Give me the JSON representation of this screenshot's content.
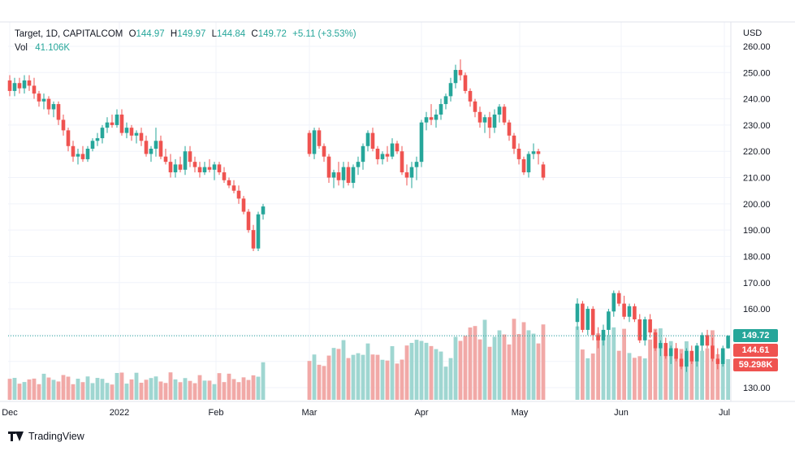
{
  "legend": {
    "symbol": "Target, 1D, CAPITALCOM",
    "o_label": "O",
    "o_value": "144.97",
    "h_label": "H",
    "h_value": "149.97",
    "l_label": "L",
    "l_value": "144.84",
    "c_label": "C",
    "c_value": "149.72",
    "change": "+5.11 (+3.53%)",
    "vol_label": "Vol",
    "vol_value": "41.106K"
  },
  "axis": {
    "currency": "USD",
    "price_ticks": [
      "260.00",
      "250.00",
      "240.00",
      "230.00",
      "220.00",
      "210.00",
      "200.00",
      "190.00",
      "180.00",
      "170.00",
      "160.00",
      "150.00",
      "140.00",
      "130.00"
    ],
    "time_ticks": [
      "Dec",
      "2022",
      "Feb",
      "Mar",
      "Apr",
      "May",
      "Jun",
      "Jul"
    ]
  },
  "price_tags": {
    "last": "149.72",
    "prev": "144.61",
    "volume": "59.298K"
  },
  "brand": {
    "name": "TradingView"
  },
  "colors": {
    "up": "#26a69a",
    "down": "#ef5350",
    "vol_up": "#9fd6d1",
    "vol_down": "#f1a9a7",
    "grid": "#f0f3fa"
  },
  "chart_data": {
    "type": "candlestick",
    "title": "Target, 1D, CAPITALCOM",
    "ylabel": "USD",
    "ylim": [
      126,
      262
    ],
    "x_labels": [
      "Dec",
      "2022",
      "Feb",
      "Mar",
      "Apr",
      "May",
      "Jun",
      "Jul"
    ],
    "segments": [
      {
        "kind": "down",
        "ohlc": [
          [
            247,
            249,
            241,
            243
          ],
          [
            243,
            248,
            241,
            246
          ],
          [
            246,
            248,
            242,
            244
          ],
          [
            244,
            249,
            242,
            247
          ],
          [
            247,
            249,
            243,
            245
          ],
          [
            245,
            248,
            240,
            242
          ],
          [
            242,
            243,
            237,
            239
          ],
          [
            239,
            242,
            236,
            240
          ],
          [
            240,
            241,
            234,
            236
          ],
          [
            236,
            239,
            233,
            238
          ],
          [
            238,
            239,
            230,
            232
          ],
          [
            232,
            234,
            226,
            228
          ],
          [
            228,
            229,
            220,
            222
          ],
          [
            222,
            224,
            216,
            218
          ],
          [
            218,
            221,
            215,
            219
          ],
          [
            219,
            222,
            216,
            217
          ],
          [
            217,
            222,
            216,
            221
          ],
          [
            221,
            225,
            220,
            224
          ],
          [
            224,
            227,
            222,
            225
          ],
          [
            225,
            230,
            223,
            229
          ],
          [
            229,
            233,
            227,
            231
          ],
          [
            231,
            234,
            229,
            230
          ],
          [
            230,
            236,
            229,
            234
          ],
          [
            234,
            236,
            226,
            227
          ],
          [
            227,
            231,
            225,
            229
          ],
          [
            229,
            230,
            224,
            226
          ],
          [
            226,
            228,
            223,
            227
          ],
          [
            227,
            229,
            222,
            224
          ],
          [
            224,
            226,
            218,
            219
          ],
          [
            219,
            222,
            216,
            221
          ],
          [
            221,
            229,
            218,
            224
          ],
          [
            224,
            226,
            217,
            218
          ],
          [
            218,
            221,
            215,
            216
          ],
          [
            216,
            219,
            210,
            212
          ],
          [
            212,
            217,
            210,
            215
          ],
          [
            215,
            218,
            212,
            213
          ],
          [
            213,
            222,
            211,
            220
          ],
          [
            220,
            222,
            214,
            216
          ],
          [
            216,
            218,
            212,
            214
          ],
          [
            214,
            216,
            210,
            212
          ],
          [
            212,
            216,
            211,
            214
          ],
          [
            214,
            217,
            212,
            213
          ],
          [
            213,
            216,
            209,
            215
          ],
          [
            215,
            216,
            211,
            212
          ],
          [
            212,
            214,
            208,
            209
          ],
          [
            209,
            210,
            206,
            207
          ],
          [
            207,
            209,
            204,
            205
          ],
          [
            205,
            207,
            200,
            202
          ],
          [
            202,
            203,
            196,
            197
          ],
          [
            197,
            198,
            189,
            190
          ],
          [
            190,
            192,
            182,
            183
          ],
          [
            183,
            197,
            182,
            196
          ],
          [
            196,
            200,
            194,
            199
          ]
        ]
      },
      {
        "kind": "gap",
        "ohlc": [
          [
            227,
            228,
            218,
            219
          ],
          [
            219,
            229,
            217,
            228
          ],
          [
            228,
            229,
            221,
            222
          ],
          [
            222,
            223,
            216,
            218
          ],
          [
            218,
            219,
            208,
            210
          ],
          [
            210,
            213,
            206,
            212
          ],
          [
            212,
            216,
            207,
            209
          ],
          [
            209,
            216,
            206,
            214
          ],
          [
            214,
            216,
            207,
            208
          ],
          [
            208,
            215,
            206,
            214
          ],
          [
            214,
            218,
            211,
            216
          ],
          [
            216,
            223,
            213,
            222
          ],
          [
            222,
            228,
            220,
            227
          ],
          [
            227,
            229,
            220,
            221
          ],
          [
            221,
            222,
            215,
            217
          ],
          [
            217,
            220,
            215,
            219
          ],
          [
            219,
            222,
            216,
            218
          ],
          [
            218,
            225,
            217,
            223
          ],
          [
            223,
            224,
            219,
            220
          ],
          [
            220,
            222,
            211,
            212
          ],
          [
            212,
            215,
            207,
            210
          ],
          [
            210,
            216,
            206,
            214
          ],
          [
            214,
            218,
            209,
            216
          ],
          [
            216,
            232,
            214,
            231
          ],
          [
            231,
            235,
            228,
            233
          ],
          [
            233,
            238,
            230,
            232
          ],
          [
            232,
            236,
            229,
            234
          ],
          [
            234,
            240,
            232,
            238
          ],
          [
            238,
            242,
            236,
            241
          ],
          [
            241,
            248,
            239,
            246
          ],
          [
            246,
            253,
            244,
            251
          ],
          [
            251,
            255,
            247,
            249
          ],
          [
            249,
            250,
            242,
            243
          ],
          [
            243,
            244,
            237,
            239
          ],
          [
            239,
            240,
            233,
            235
          ],
          [
            235,
            237,
            229,
            231
          ],
          [
            231,
            234,
            227,
            233
          ],
          [
            233,
            235,
            225,
            229
          ],
          [
            229,
            236,
            227,
            234
          ],
          [
            234,
            238,
            231,
            237
          ],
          [
            237,
            238,
            230,
            231
          ],
          [
            231,
            232,
            224,
            226
          ],
          [
            226,
            227,
            219,
            221
          ],
          [
            221,
            223,
            215,
            217
          ],
          [
            217,
            218,
            211,
            212
          ],
          [
            212,
            220,
            210,
            219
          ],
          [
            219,
            223,
            217,
            220
          ],
          [
            220,
            221,
            215,
            219
          ],
          [
            215,
            216,
            209,
            210
          ]
        ]
      },
      {
        "kind": "recent",
        "ohlc": [
          [
            155,
            164,
            152,
            162
          ],
          [
            162,
            163,
            151,
            152
          ],
          [
            152,
            161,
            150,
            160
          ],
          [
            160,
            161,
            148,
            150
          ],
          [
            150,
            153,
            145,
            148
          ],
          [
            148,
            154,
            146,
            152
          ],
          [
            152,
            160,
            150,
            159
          ],
          [
            159,
            167,
            157,
            166
          ],
          [
            166,
            167,
            161,
            162
          ],
          [
            162,
            165,
            156,
            157
          ],
          [
            157,
            162,
            155,
            161
          ],
          [
            161,
            162,
            155,
            156
          ],
          [
            156,
            158,
            147,
            148
          ],
          [
            148,
            157,
            146,
            156
          ],
          [
            156,
            158,
            149,
            151
          ],
          [
            151,
            152,
            144,
            145
          ],
          [
            145,
            148,
            142,
            147
          ],
          [
            147,
            149,
            141,
            142
          ],
          [
            142,
            146,
            139,
            145
          ],
          [
            145,
            147,
            140,
            141
          ],
          [
            141,
            143,
            137,
            138
          ],
          [
            138,
            145,
            136,
            144
          ],
          [
            144,
            146,
            139,
            140
          ],
          [
            140,
            147,
            138,
            146
          ],
          [
            146,
            151,
            144,
            150
          ],
          [
            150,
            152,
            145,
            146
          ],
          [
            146,
            149,
            140,
            141
          ],
          [
            141,
            145,
            137,
            139
          ],
          [
            139,
            146,
            138,
            145
          ],
          [
            144.97,
            149.97,
            144.84,
            149.72
          ]
        ]
      }
    ],
    "volume_scale_max": "59.298K"
  }
}
